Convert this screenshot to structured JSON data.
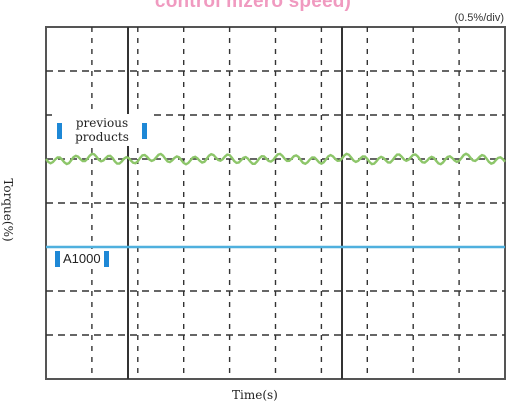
{
  "header": {
    "title": "control mzero speed)",
    "scale": "(0.5%/div)"
  },
  "chart_data": {
    "type": "line",
    "title": "control mzero speed)",
    "xlabel": "Time(s)",
    "ylabel": "Torque(%)",
    "grid": true,
    "grid_divisions": {
      "x": 10,
      "y": 8
    },
    "scale_per_div": "0.5%/div",
    "series": [
      {
        "name": "previous products",
        "color": "#8dc66a",
        "level_div": 5.0,
        "ripple_div": 0.08
      },
      {
        "name": "A1000",
        "color": "#4fb0de",
        "level_div": 3.0,
        "ripple_div": 0
      }
    ]
  },
  "labels": {
    "previous": "previous products",
    "a1000": "A1000"
  },
  "colors": {
    "title": "#f09ac0",
    "marker": "#1e88d6"
  }
}
